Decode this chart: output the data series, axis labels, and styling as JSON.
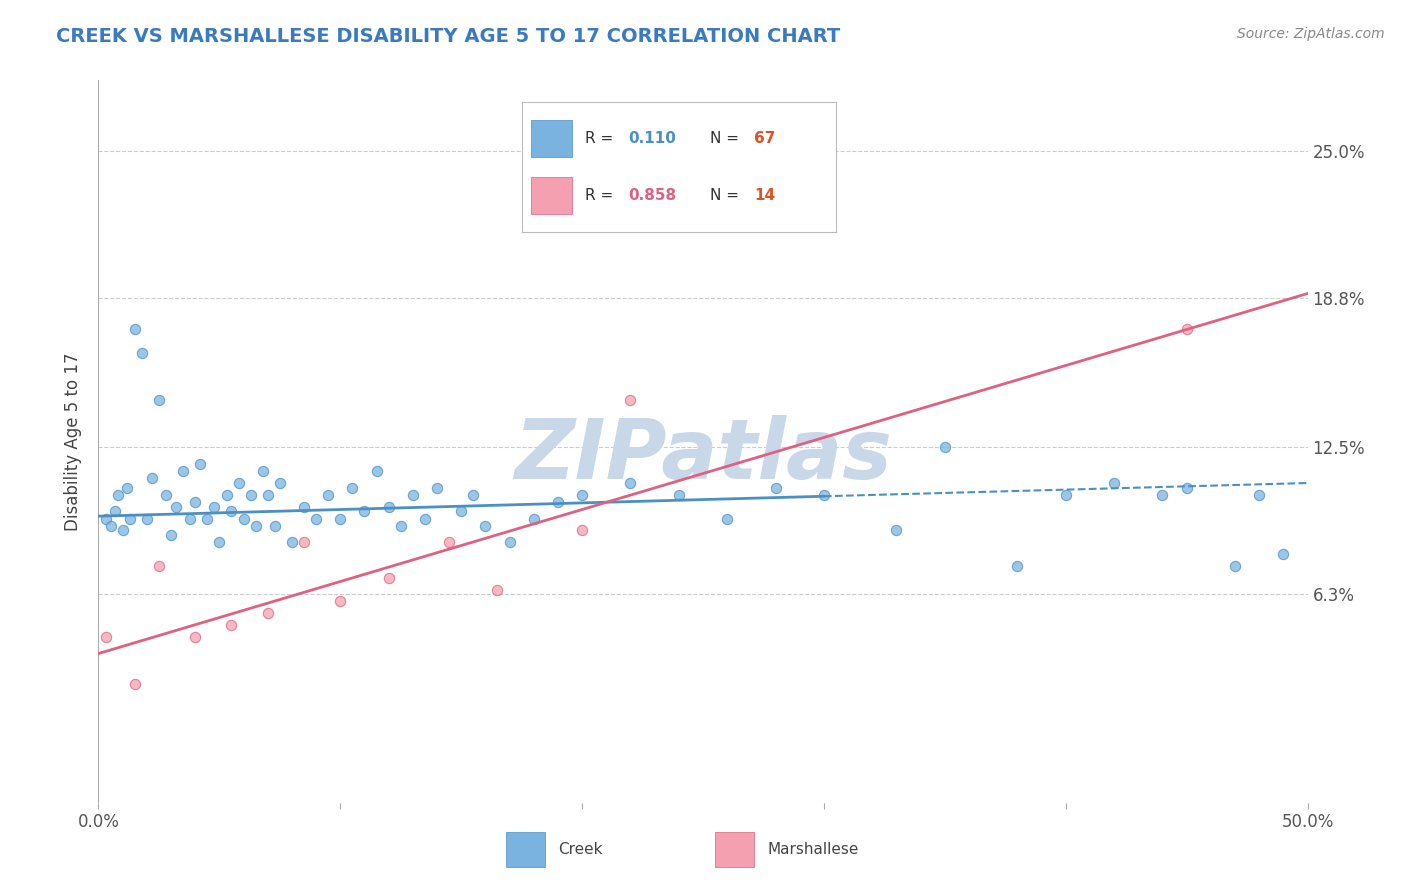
{
  "title": "CREEK VS MARSHALLESE DISABILITY AGE 5 TO 17 CORRELATION CHART",
  "source_text": "Source: ZipAtlas.com",
  "ylabel": "Disability Age 5 to 17",
  "xlim": [
    0.0,
    50.0
  ],
  "ylim": [
    -2.5,
    28.0
  ],
  "ytick_positions": [
    6.3,
    12.5,
    18.8,
    25.0
  ],
  "ytick_labels": [
    "6.3%",
    "12.5%",
    "18.8%",
    "25.0%"
  ],
  "creek_color": "#7ab3e0",
  "creek_color_dark": "#4a90c4",
  "marshallese_color": "#f4a0b0",
  "marshallese_color_dark": "#e06080",
  "creek_R": "0.110",
  "creek_N": "67",
  "marshallese_R": "0.858",
  "marshallese_N": "14",
  "creek_x": [
    0.3,
    0.5,
    0.7,
    0.8,
    1.0,
    1.2,
    1.3,
    1.5,
    1.8,
    2.0,
    2.2,
    2.5,
    2.8,
    3.0,
    3.2,
    3.5,
    3.8,
    4.0,
    4.2,
    4.5,
    4.8,
    5.0,
    5.3,
    5.5,
    5.8,
    6.0,
    6.3,
    6.5,
    6.8,
    7.0,
    7.3,
    7.5,
    8.0,
    8.5,
    9.0,
    9.5,
    10.0,
    10.5,
    11.0,
    11.5,
    12.0,
    12.5,
    13.0,
    13.5,
    14.0,
    15.0,
    15.5,
    16.0,
    17.0,
    18.0,
    19.0,
    20.0,
    22.0,
    24.0,
    26.0,
    28.0,
    30.0,
    33.0,
    35.0,
    38.0,
    40.0,
    42.0,
    44.0,
    45.0,
    47.0,
    48.0,
    49.0
  ],
  "creek_y": [
    9.5,
    9.2,
    9.8,
    10.5,
    9.0,
    10.8,
    9.5,
    17.5,
    16.5,
    9.5,
    11.2,
    14.5,
    10.5,
    8.8,
    10.0,
    11.5,
    9.5,
    10.2,
    11.8,
    9.5,
    10.0,
    8.5,
    10.5,
    9.8,
    11.0,
    9.5,
    10.5,
    9.2,
    11.5,
    10.5,
    9.2,
    11.0,
    8.5,
    10.0,
    9.5,
    10.5,
    9.5,
    10.8,
    9.8,
    11.5,
    10.0,
    9.2,
    10.5,
    9.5,
    10.8,
    9.8,
    10.5,
    9.2,
    8.5,
    9.5,
    10.2,
    10.5,
    11.0,
    10.5,
    9.5,
    10.8,
    10.5,
    9.0,
    12.5,
    7.5,
    10.5,
    11.0,
    10.5,
    10.8,
    7.5,
    10.5,
    8.0
  ],
  "marsh_x": [
    0.3,
    1.5,
    2.5,
    4.0,
    5.5,
    7.0,
    8.5,
    10.0,
    12.0,
    14.5,
    16.5,
    20.0,
    22.0,
    45.0
  ],
  "marsh_y": [
    4.5,
    2.5,
    7.5,
    4.5,
    5.0,
    5.5,
    8.5,
    6.0,
    7.0,
    8.5,
    6.5,
    9.0,
    14.5,
    17.5
  ],
  "creek_line_x0": 0.0,
  "creek_line_x1": 50.0,
  "creek_line_y0": 9.6,
  "creek_line_y1": 11.0,
  "creek_solid_end": 30.0,
  "marsh_line_x0": 0.0,
  "marsh_line_x1": 50.0,
  "marsh_line_y0": 3.8,
  "marsh_line_y1": 19.0,
  "watermark": "ZIPatlas",
  "watermark_color": "#c8d8e8",
  "background_color": "#ffffff",
  "grid_color": "#cccccc",
  "legend_R_color": "#555555",
  "legend_N_color": "#e05020",
  "title_color": "#3a7abf",
  "source_color": "#888888",
  "tick_color": "#555555"
}
